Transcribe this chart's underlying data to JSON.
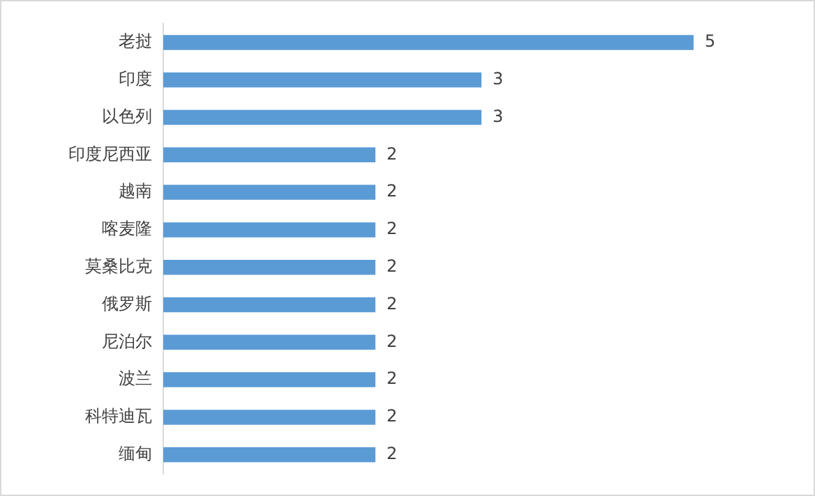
{
  "chart_data": {
    "type": "bar",
    "orientation": "horizontal",
    "categories": [
      "老挝",
      "印度",
      "以色列",
      "印度尼西亚",
      "越南",
      "喀麦隆",
      "莫桑比克",
      "俄罗斯",
      "尼泊尔",
      "波兰",
      "科特迪瓦",
      "缅甸"
    ],
    "values": [
      5,
      3,
      3,
      2,
      2,
      2,
      2,
      2,
      2,
      2,
      2,
      2
    ],
    "color": "#5b9bd5",
    "tick_labels": "y",
    "data_labels": true
  }
}
